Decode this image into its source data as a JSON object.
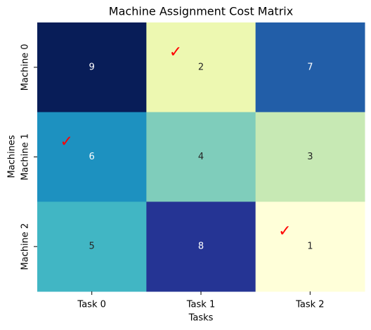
{
  "chart_data": {
    "type": "heatmap",
    "title": "Machine Assignment Cost Matrix",
    "x_label": "Tasks",
    "y_label": "Machines",
    "x_categories": [
      "Task 0",
      "Task 1",
      "Task 2"
    ],
    "y_categories": [
      "Machine 0",
      "Machine 1",
      "Machine 2"
    ],
    "values": [
      [
        9,
        2,
        7
      ],
      [
        6,
        4,
        3
      ],
      [
        5,
        8,
        1
      ]
    ],
    "colors": [
      [
        "#081d58",
        "#edf8b1",
        "#225ea8"
      ],
      [
        "#1d91c0",
        "#7fcdbb",
        "#c7e9b4"
      ],
      [
        "#41b6c4",
        "#253494",
        "#ffffd9"
      ]
    ],
    "assignment": [
      1,
      0,
      2
    ],
    "assignment_marker": "✓",
    "assignment_color": "#ff0000"
  }
}
